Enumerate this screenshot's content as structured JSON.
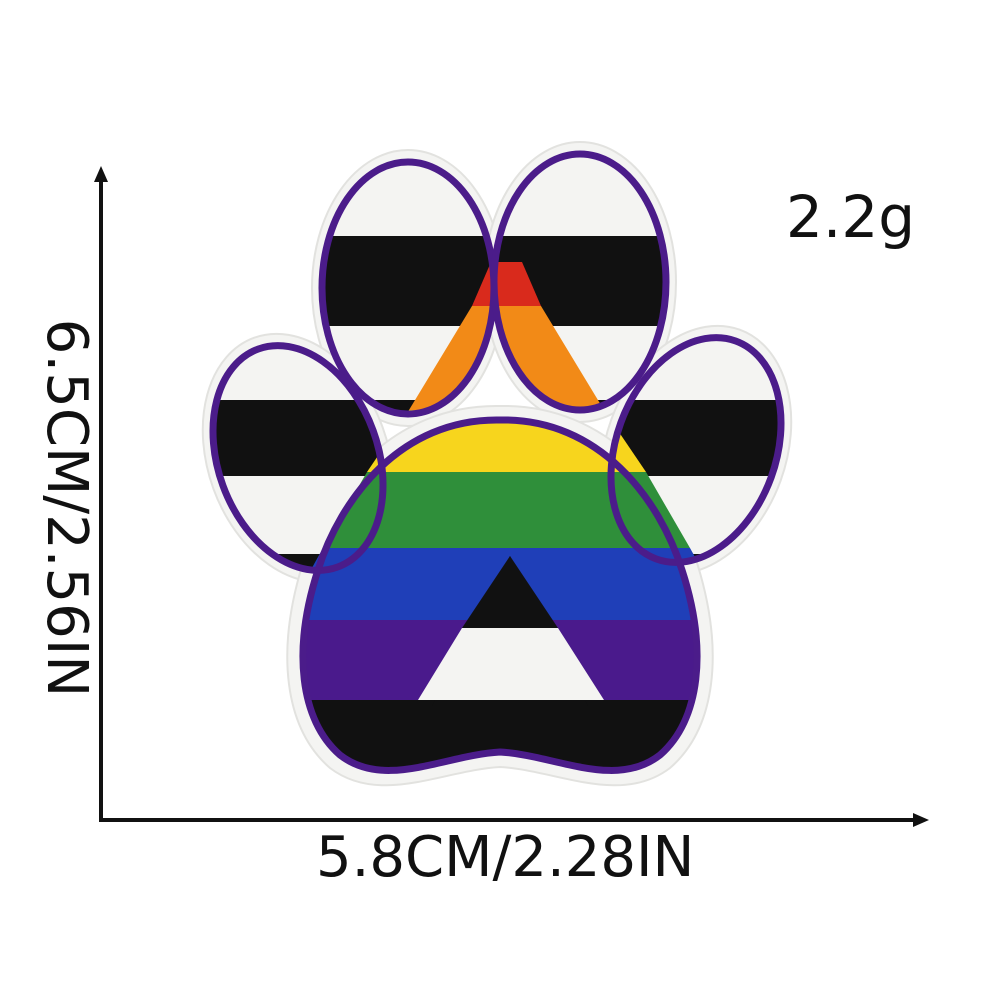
{
  "weight_label": "2.2g",
  "width_label": "5.8CM/2.28IN",
  "height_label": "6.5CM/2.56IN",
  "colors": {
    "background": "#ffffff",
    "axis": "#111111",
    "outline": "#4b1c8a",
    "patch_border": "#f4f4f2",
    "stripes": [
      "#f4f4f2",
      "#111111",
      "#f4f4f2",
      "#111111",
      "#f4f4f2",
      "#111111",
      "#f4f4f2"
    ],
    "rainbow": [
      "#d92a1c",
      "#f28a17",
      "#f7d51d",
      "#2f8f3a",
      "#1f3fb8",
      "#4a1a8c"
    ]
  }
}
